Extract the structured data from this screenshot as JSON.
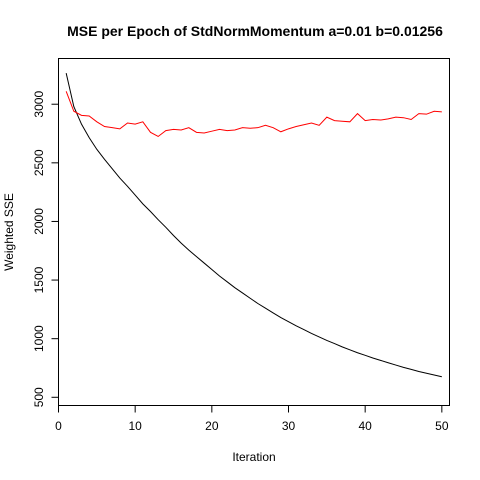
{
  "chart_data": {
    "type": "line",
    "title": "MSE per Epoch of StdNormMomentum a=0.01 b=0.01256",
    "xlabel": "Iteration",
    "ylabel": "Weighted SSE",
    "xlim": [
      0,
      51
    ],
    "ylim": [
      430,
      3390
    ],
    "xticks": [
      0,
      10,
      20,
      30,
      40,
      50
    ],
    "yticks": [
      500,
      1000,
      1500,
      2000,
      2500,
      3000
    ],
    "grid": false,
    "legend": "none",
    "x": [
      1,
      2,
      3,
      4,
      5,
      6,
      7,
      8,
      9,
      10,
      11,
      12,
      13,
      14,
      15,
      16,
      17,
      18,
      19,
      20,
      21,
      22,
      23,
      24,
      25,
      26,
      27,
      28,
      29,
      30,
      31,
      32,
      33,
      34,
      35,
      36,
      37,
      38,
      39,
      40,
      41,
      42,
      43,
      44,
      45,
      46,
      47,
      48,
      49,
      50
    ],
    "series": [
      {
        "color": "#000000",
        "values": [
          3265,
          2980,
          2830,
          2715,
          2615,
          2530,
          2450,
          2370,
          2300,
          2225,
          2150,
          2085,
          2015,
          1950,
          1880,
          1815,
          1755,
          1700,
          1645,
          1590,
          1535,
          1485,
          1435,
          1390,
          1345,
          1300,
          1260,
          1220,
          1180,
          1145,
          1110,
          1078,
          1045,
          1015,
          985,
          958,
          930,
          905,
          880,
          858,
          835,
          815,
          795,
          775,
          755,
          738,
          720,
          705,
          690,
          675
        ]
      },
      {
        "color": "#ff0000",
        "values": [
          3110,
          2940,
          2905,
          2900,
          2850,
          2810,
          2800,
          2790,
          2840,
          2830,
          2850,
          2760,
          2725,
          2775,
          2785,
          2780,
          2800,
          2760,
          2755,
          2770,
          2785,
          2775,
          2780,
          2800,
          2795,
          2800,
          2820,
          2800,
          2765,
          2790,
          2810,
          2825,
          2840,
          2820,
          2890,
          2860,
          2855,
          2850,
          2920,
          2860,
          2870,
          2865,
          2875,
          2890,
          2885,
          2870,
          2920,
          2915,
          2940,
          2935
        ]
      }
    ]
  }
}
